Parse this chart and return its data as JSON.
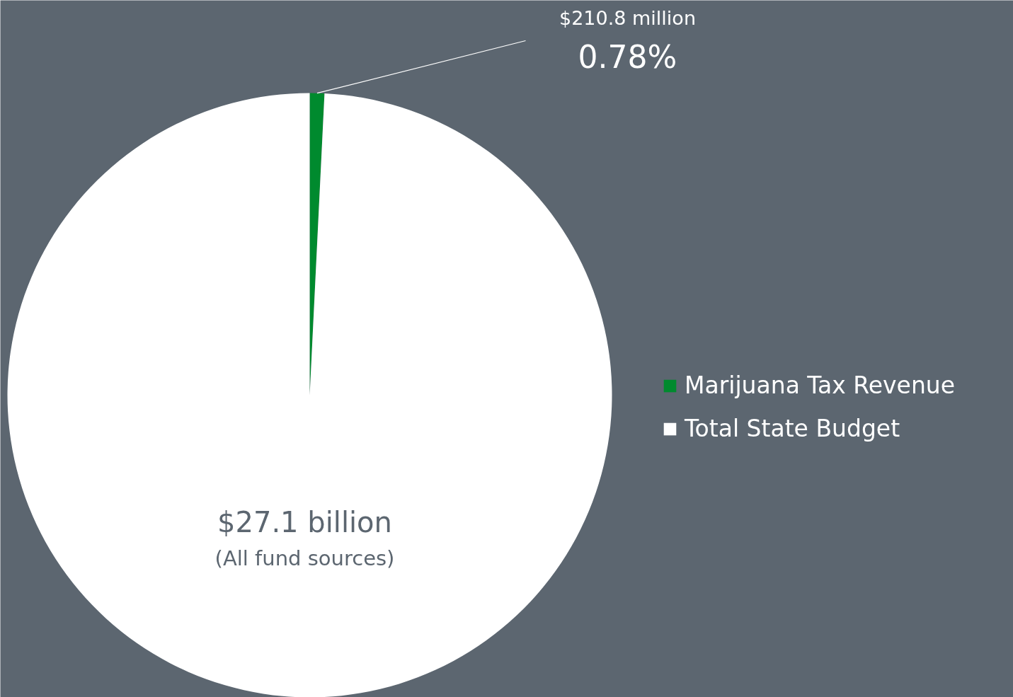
{
  "chart_data": {
    "type": "pie",
    "categories": [
      "Marijuana Tax Revenue",
      "Total State Budget"
    ],
    "values": [
      0.78,
      99.22
    ],
    "colors": [
      "#008a2e",
      "#ffffff"
    ],
    "annotations": [
      "$210.8 million",
      "0.78%",
      "$27.1 billion",
      "(All fund sources)"
    ],
    "legend": "right"
  }
}
